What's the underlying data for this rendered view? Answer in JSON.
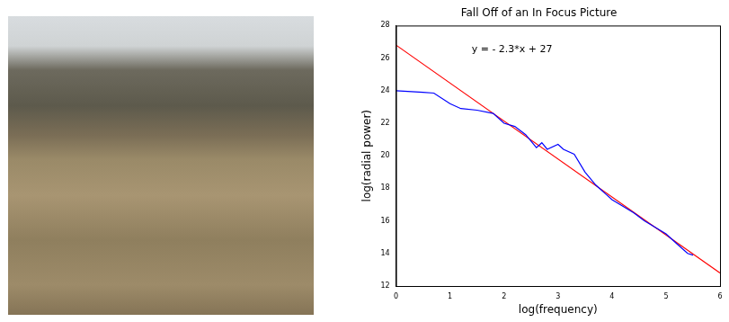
{
  "chart_data": {
    "type": "line",
    "title": "Fall Off of an In Focus Picture",
    "x_label": "log(frequency)",
    "y_label": "log(radial power)",
    "xlim": [
      0,
      6
    ],
    "xticks": [
      0,
      1,
      2,
      3,
      4,
      5,
      6
    ],
    "ylim": [
      12,
      28
    ],
    "yticks": [
      12,
      14,
      16,
      18,
      20,
      22,
      24,
      26,
      28
    ],
    "grid": false,
    "annotations": [
      {
        "text": "y = - 2.3*x + 27",
        "x": 1.4,
        "y": 26.5
      }
    ],
    "series": [
      {
        "color": "#0000ff",
        "line_style": "solid",
        "x": [
          0,
          0.5,
          0.7,
          1.0,
          1.2,
          1.5,
          1.8,
          2.0,
          2.2,
          2.4,
          2.6,
          2.7,
          2.8,
          3.0,
          3.1,
          3.3,
          3.5,
          3.7,
          3.9,
          4.0,
          4.2,
          4.4,
          4.6,
          4.8,
          5.0,
          5.2,
          5.4,
          5.5
        ],
        "values": [
          24.0,
          23.9,
          23.85,
          23.2,
          22.9,
          22.8,
          22.6,
          22.0,
          21.8,
          21.3,
          20.5,
          20.8,
          20.4,
          20.7,
          20.4,
          20.1,
          19.0,
          18.2,
          17.6,
          17.3,
          16.9,
          16.5,
          16.0,
          15.6,
          15.2,
          14.6,
          14.0,
          13.9
        ]
      },
      {
        "color": "#ff0000",
        "line_style": "solid",
        "x": [
          0,
          6
        ],
        "values": [
          26.8,
          12.8
        ]
      }
    ]
  }
}
